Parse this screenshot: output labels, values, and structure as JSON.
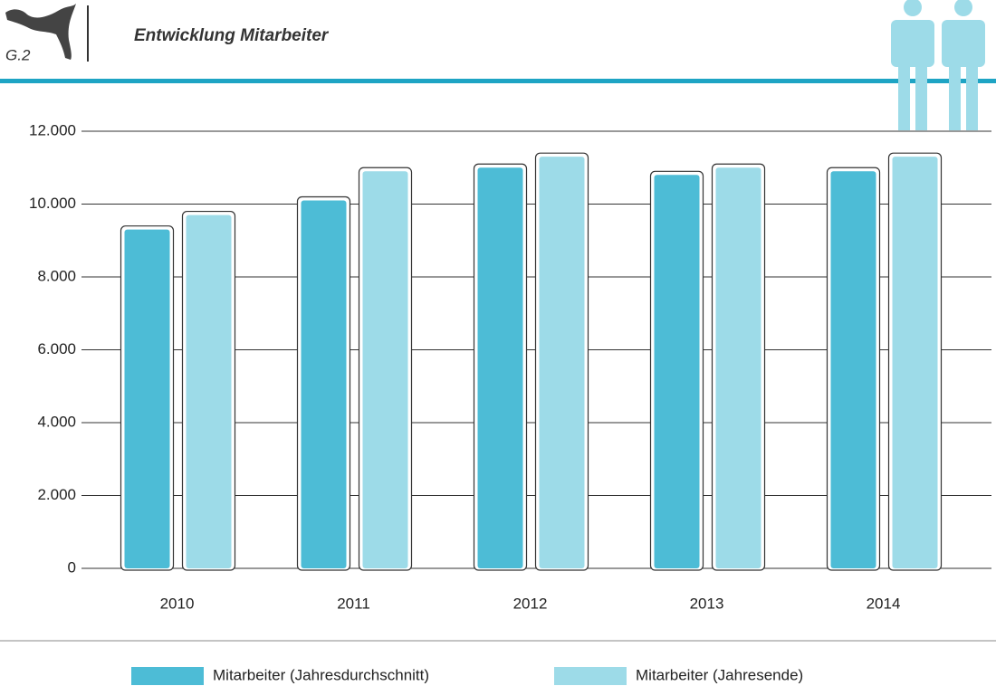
{
  "header": {
    "code": "G.2"
  },
  "chart_data": {
    "type": "bar",
    "title": "Entwicklung Mitarbeiter",
    "categories": [
      "2010",
      "2011",
      "2012",
      "2013",
      "2014"
    ],
    "series": [
      {
        "name": "Mitarbeiter (Jahresdurchschnitt)",
        "color": "#4dbcd6",
        "values": [
          9300,
          10100,
          11000,
          10800,
          10900
        ]
      },
      {
        "name": "Mitarbeiter (Jahresende)",
        "color": "#9ddbe8",
        "values": [
          9700,
          10900,
          11300,
          11000,
          11300
        ]
      }
    ],
    "ylim": [
      0,
      12000
    ],
    "yticks": [
      0,
      {
        "value": 2000,
        "label": "2.000"
      },
      {
        "value": 4000,
        "label": "4.000"
      },
      {
        "value": 6000,
        "label": "6.000"
      },
      {
        "value": 8000,
        "label": "8.000"
      },
      {
        "value": 10000,
        "label": "10.000"
      },
      {
        "value": 12000,
        "label": "12.000"
      }
    ],
    "grid": true,
    "legend": "bottom"
  }
}
